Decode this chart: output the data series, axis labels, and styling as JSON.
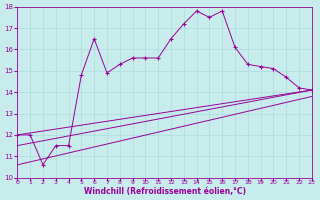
{
  "xlabel": "Windchill (Refroidissement éolien,°C)",
  "xlim": [
    0,
    23
  ],
  "ylim": [
    10,
    18
  ],
  "xticks": [
    0,
    1,
    2,
    3,
    4,
    5,
    6,
    7,
    8,
    9,
    10,
    11,
    12,
    13,
    14,
    15,
    16,
    17,
    18,
    19,
    20,
    21,
    22,
    23
  ],
  "yticks": [
    10,
    11,
    12,
    13,
    14,
    15,
    16,
    17,
    18
  ],
  "bg_color": "#c8ecec",
  "grid_color": "#aadddd",
  "line_color": "#990099",
  "line1_x": [
    0,
    1,
    2,
    3,
    4,
    5,
    6,
    7,
    8,
    9,
    10,
    11,
    12,
    13,
    14,
    15,
    16,
    17,
    18,
    19,
    20,
    21,
    22,
    23
  ],
  "line1_y": [
    12.0,
    12.0,
    10.6,
    11.5,
    11.5,
    14.8,
    16.5,
    14.9,
    15.3,
    15.6,
    15.6,
    15.6,
    16.5,
    17.2,
    17.8,
    17.5,
    17.8,
    16.1,
    15.3,
    15.2,
    15.1,
    14.7,
    14.2,
    14.1
  ],
  "line2_x": [
    0,
    23
  ],
  "line2_y": [
    12.0,
    14.1
  ],
  "line3_x": [
    0,
    23
  ],
  "line3_y": [
    11.5,
    14.1
  ],
  "line4_x": [
    0,
    23
  ],
  "line4_y": [
    10.6,
    13.8
  ],
  "marker": "+"
}
